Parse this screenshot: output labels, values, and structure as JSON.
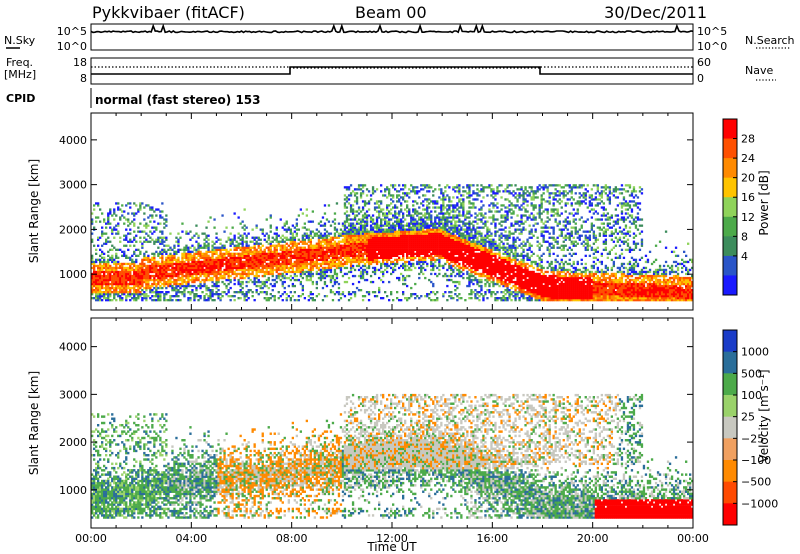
{
  "header": {
    "station": "Pykkvibaer (fitACF)",
    "beam": "Beam 00",
    "date": "30/Dec/2011"
  },
  "noise_panel": {
    "left_label": "N.Sky",
    "right_label": "N.Search",
    "left_ticks": [
      "10^5",
      "10^0"
    ],
    "right_ticks": [
      "10^5",
      "10^0"
    ]
  },
  "freq_panel": {
    "left_label_1": "Freq.",
    "left_label_2": "[MHz]",
    "right_label": "Nave",
    "left_ticks": [
      "18",
      "8"
    ],
    "right_ticks": [
      "60",
      "0"
    ]
  },
  "cpid": {
    "label": "CPID",
    "mode": "normal (fast stereo) 153"
  },
  "colors": {
    "power_scale": [
      "#1a1aff",
      "#2a55c8",
      "#3c8c5c",
      "#4caa4a",
      "#8fd35a",
      "#ffc400",
      "#ff8a00",
      "#ff5000",
      "#ff0000"
    ],
    "velocity_scale": [
      "#ff0000",
      "#ff4a00",
      "#ff8a00",
      "#f0a060",
      "#c8c8c0",
      "#9ad26a",
      "#4caa4a",
      "#2a6e9a",
      "#1a3cc8"
    ]
  },
  "chart_data": [
    {
      "type": "heatmap",
      "name": "power",
      "ylabel": "Slant Range [km]",
      "ylim": [
        200,
        4600
      ],
      "yticks": [
        1000,
        2000,
        3000,
        4000
      ],
      "xlim": [
        0,
        24
      ],
      "xticks": [
        "00:00",
        "04:00",
        "08:00",
        "12:00",
        "16:00",
        "20:00",
        "00:00"
      ],
      "colorbar": {
        "label": "Power [dB]",
        "ticks": [
          "28",
          "24",
          "20",
          "16",
          "12",
          "8",
          "4"
        ]
      }
    },
    {
      "type": "heatmap",
      "name": "velocity",
      "ylabel": "Slant Range [km]",
      "ylim": [
        200,
        4600
      ],
      "yticks": [
        1000,
        2000,
        3000,
        4000
      ],
      "xlim": [
        0,
        24
      ],
      "xticks": [
        "00:00",
        "04:00",
        "08:00",
        "12:00",
        "16:00",
        "20:00",
        "00:00"
      ],
      "xlabel": "Time UT",
      "colorbar": {
        "label": "Velocity [m s⁻¹]",
        "ticks": [
          "1000",
          "500",
          "100",
          "25",
          "−25",
          "−100",
          "−500",
          "−1000"
        ]
      }
    }
  ]
}
